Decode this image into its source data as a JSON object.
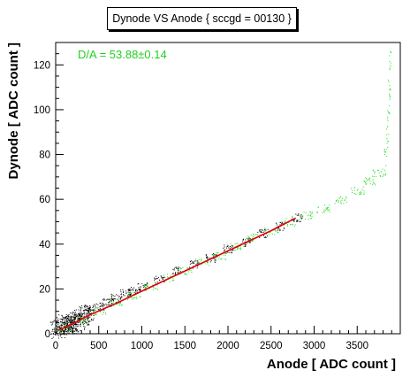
{
  "chart_data": {
    "type": "scatter",
    "title": "Dynode VS Anode { sccgd = 00130 }",
    "xlabel": "Anode [ ADC count ]",
    "ylabel": "Dynode [ ADC count ]",
    "xlim": [
      0,
      4000
    ],
    "ylim": [
      0,
      130
    ],
    "x_ticks": [
      0,
      500,
      1000,
      1500,
      2000,
      2500,
      3000,
      3500
    ],
    "y_ticks": [
      0,
      20,
      40,
      60,
      80,
      100,
      120
    ],
    "annotation": "D/A = 53.88±0.14",
    "grid": false,
    "colors": {
      "points": "#000000",
      "selected_points": "#22dd22",
      "fit_line": "#dd0000",
      "annotation": "#20d020"
    },
    "series": [
      {
        "kind": "scatter-dense",
        "color": "#000000",
        "points": [
          [
            30,
            2
          ],
          [
            60,
            4
          ],
          [
            100,
            5
          ],
          [
            150,
            4
          ],
          [
            200,
            5
          ],
          [
            250,
            6
          ],
          [
            300,
            8
          ],
          [
            350,
            9
          ],
          [
            400,
            11
          ],
          [
            500,
            12
          ],
          [
            600,
            14
          ],
          [
            700,
            16
          ],
          [
            800,
            18
          ],
          [
            900,
            19
          ],
          [
            1000,
            21
          ],
          [
            1200,
            24
          ],
          [
            1400,
            28
          ],
          [
            1600,
            31
          ],
          [
            1800,
            34
          ],
          [
            2000,
            38
          ],
          [
            2200,
            41
          ],
          [
            2400,
            45
          ],
          [
            2600,
            48
          ],
          [
            2800,
            52
          ]
        ]
      },
      {
        "kind": "scatter-selected",
        "color": "#22dd22",
        "points": [
          [
            100,
            3
          ],
          [
            300,
            6
          ],
          [
            500,
            10
          ],
          [
            700,
            14
          ],
          [
            900,
            17
          ],
          [
            1100,
            21
          ],
          [
            1300,
            25
          ],
          [
            1500,
            28
          ],
          [
            1700,
            32
          ],
          [
            1900,
            35
          ],
          [
            2100,
            39
          ],
          [
            2300,
            43
          ],
          [
            2500,
            46
          ],
          [
            2700,
            50
          ],
          [
            2900,
            53
          ],
          [
            3100,
            56
          ],
          [
            3300,
            60
          ],
          [
            3500,
            64
          ],
          [
            3650,
            68
          ],
          [
            3750,
            72
          ],
          [
            3820,
            78
          ],
          [
            3850,
            88
          ],
          [
            3860,
            100
          ],
          [
            3870,
            110
          ],
          [
            3875,
            122
          ]
        ]
      },
      {
        "kind": "fit",
        "color": "#dd0000",
        "x": [
          30,
          200,
          400,
          700,
          1000,
          1500,
          2000,
          2500,
          2780
        ],
        "y": [
          1.5,
          4.5,
          8.5,
          13.5,
          19,
          28,
          37,
          46,
          51.5
        ]
      }
    ]
  }
}
